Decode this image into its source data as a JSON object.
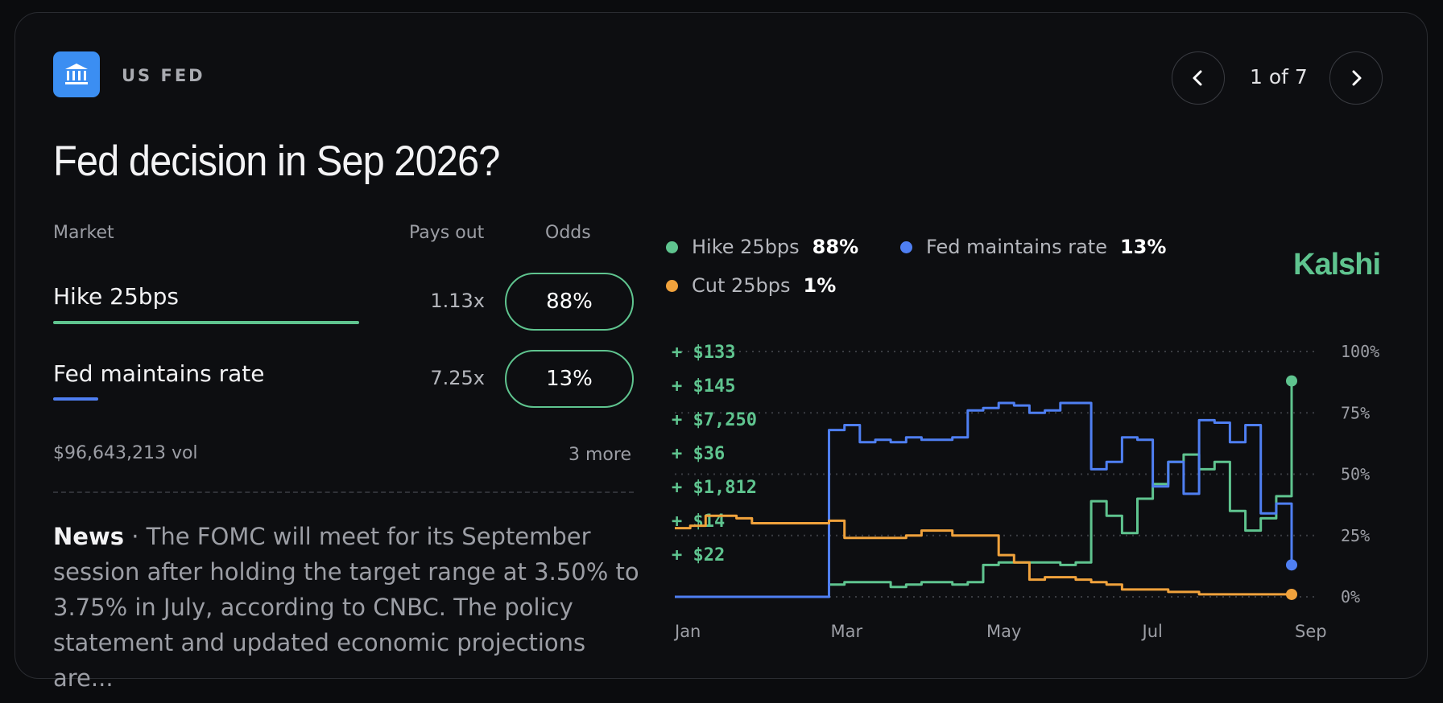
{
  "header": {
    "category": "US FED",
    "pager": "1 of 7",
    "logo_icon": "bank-building-icon",
    "prev_icon": "chevron-left-icon",
    "next_icon": "chevron-right-icon"
  },
  "title": "Fed decision in Sep 2026?",
  "table": {
    "col_market": "Market",
    "col_payout": "Pays out",
    "col_odds": "Odds",
    "rows": [
      {
        "name": "Hike 25bps",
        "payout": "1.13x",
        "odds": "88%",
        "color": "#5fc48f"
      },
      {
        "name": "Fed maintains rate",
        "payout": "7.25x",
        "odds": "13%",
        "color": "#4f7ff2"
      }
    ]
  },
  "volume": "$96,643,213 vol",
  "more": "3 more",
  "news": {
    "label": "News",
    "text": " · The FOMC will meet for its September session after holding the target range at 3.50% to 3.75% in July, according to CNBC. The policy statement and updated economic projections are..."
  },
  "brand": "Kalshi",
  "legend": [
    {
      "name": "Hike 25bps",
      "pct": "88%",
      "color": "#5fc48f"
    },
    {
      "name": "Fed maintains rate",
      "pct": "13%",
      "color": "#4f7ff2"
    },
    {
      "name": "Cut 25bps",
      "pct": "1%",
      "color": "#f0a23c"
    }
  ],
  "payouts": [
    "+ $133",
    "+ $145",
    "+ $7,250",
    "+ $36",
    "+ $1,812",
    "+ $14",
    "+ $22"
  ],
  "chart_data": {
    "type": "line",
    "x_ticks": [
      "Jan",
      "Mar",
      "May",
      "Jul",
      "Sep"
    ],
    "y_ticks": [
      "100%",
      "75%",
      "50%",
      "25%",
      "0%"
    ],
    "ylim": [
      0,
      100
    ],
    "grid": true,
    "x_points": 40,
    "series": [
      {
        "name": "Hike 25bps",
        "color": "#5fc48f",
        "values": [
          0,
          0,
          0,
          0,
          0,
          0,
          0,
          0,
          0,
          0,
          5,
          6,
          6,
          6,
          4,
          5,
          6,
          6,
          5,
          6,
          13,
          14,
          14,
          14,
          14,
          13,
          14,
          39,
          33,
          26,
          40,
          46,
          55,
          58,
          52,
          55,
          35,
          27,
          32,
          41,
          88
        ]
      },
      {
        "name": "Fed maintains rate",
        "color": "#4f7ff2",
        "values": [
          0,
          0,
          0,
          0,
          0,
          0,
          0,
          0,
          0,
          0,
          68,
          70,
          63,
          64,
          63,
          65,
          64,
          64,
          65,
          76,
          77,
          79,
          78,
          75,
          76,
          79,
          79,
          52,
          55,
          65,
          64,
          45,
          55,
          42,
          72,
          71,
          63,
          70,
          34,
          38,
          13
        ]
      },
      {
        "name": "Cut 25bps",
        "color": "#f0a23c",
        "values": [
          28,
          29,
          33,
          33,
          32,
          30,
          30,
          30,
          30,
          30,
          31,
          24,
          24,
          24,
          24,
          25,
          27,
          27,
          25,
          25,
          25,
          17,
          14,
          7,
          8,
          8,
          7,
          6,
          5,
          3,
          3,
          3,
          2,
          2,
          1,
          1,
          1,
          1,
          1,
          1,
          1
        ]
      }
    ]
  }
}
